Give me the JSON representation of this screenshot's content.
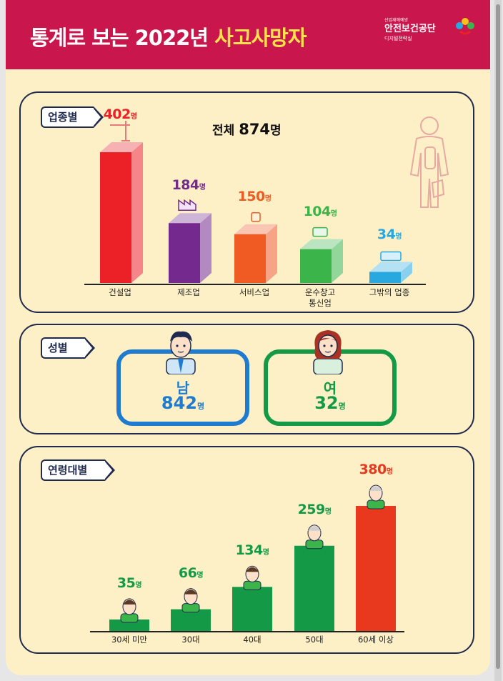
{
  "header": {
    "title_prefix": "통계로 보는 2022년 ",
    "title_highlight": "사고사망자",
    "org_small": "산업재해예방",
    "org_name": "안전보건공단",
    "org_dept": "디지털전략실",
    "colors": {
      "header_bg": "#c9174d",
      "highlight": "#ffe14d",
      "background": "#fdf0c6",
      "border": "#1f2a4e"
    }
  },
  "unit": "명",
  "industry": {
    "tag": "업종별",
    "total_label": "전체",
    "total_value": "874",
    "total_unit": "명",
    "icons": [
      "crane-icon",
      "factory-icon",
      "cup-icon",
      "truck-icon",
      "etc-icon"
    ],
    "colors": [
      "#ec2127",
      "#73298e",
      "#f05a23",
      "#3bb54a",
      "#29a8e0"
    ],
    "bars": [
      {
        "label": "건설업",
        "value": "402"
      },
      {
        "label": "제조업",
        "value": "184"
      },
      {
        "label": "서비스업",
        "value": "150"
      },
      {
        "label": "운수창고\n통신업",
        "value": "104"
      },
      {
        "label": "그밖의 업종",
        "value": "34"
      }
    ]
  },
  "chart_data": [
    {
      "type": "bar",
      "categories": [
        "건설업",
        "제조업",
        "서비스업",
        "운수창고 통신업",
        "그밖의 업종"
      ],
      "values": [
        402,
        184,
        150,
        104,
        34
      ],
      "title": "업종별",
      "ylim": [
        0,
        402
      ]
    },
    {
      "type": "bar",
      "categories": [
        "30세 미만",
        "30대",
        "40대",
        "50대",
        "60세 이상"
      ],
      "values": [
        35,
        66,
        134,
        259,
        380
      ],
      "title": "연령대별",
      "ylim": [
        0,
        380
      ]
    }
  ],
  "gender": {
    "tag": "성별",
    "male_label": "남",
    "male_value": "842",
    "female_label": "여",
    "female_value": "32",
    "colors": {
      "male": "#1f7bd0",
      "female": "#149a46"
    }
  },
  "age": {
    "tag": "연령대별",
    "value_color": "#149a46",
    "max_color": "#e8391f",
    "bars": [
      {
        "label": "30세 미만",
        "value": "35"
      },
      {
        "label": "30대",
        "value": "66"
      },
      {
        "label": "40대",
        "value": "134"
      },
      {
        "label": "50대",
        "value": "259"
      },
      {
        "label": "60세 이상",
        "value": "380"
      }
    ]
  }
}
